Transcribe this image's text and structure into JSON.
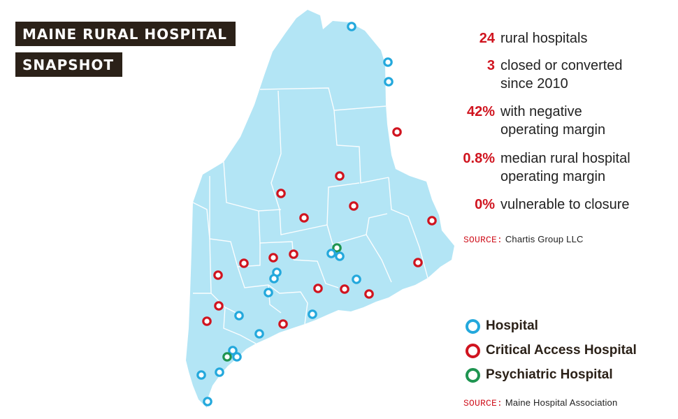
{
  "title": {
    "line1": "MAINE RURAL HOSPITAL",
    "line2": "SNAPSHOT"
  },
  "colors": {
    "map_fill": "#b3e5f5",
    "county_border": "#ffffff",
    "hospital": "#23a8dc",
    "critical_access": "#d0141f",
    "psychiatric": "#1e9450",
    "title_bg": "#2b2118",
    "accent": "#d0141f"
  },
  "stats": [
    {
      "value": "24",
      "label": "rural hospitals"
    },
    {
      "value": "3",
      "label": "closed or converted\nsince 2010"
    },
    {
      "value": "42%",
      "label": "with negative\noperating margin"
    },
    {
      "value": "0.8%",
      "label": "median rural hospital\noperating margin"
    },
    {
      "value": "0%",
      "label": "vulnerable to closure"
    }
  ],
  "source_top": {
    "label": "SOURCE:",
    "text": "Chartis Group LLC"
  },
  "legend": [
    {
      "label": "Hospital",
      "type": "hospital"
    },
    {
      "label": "Critical Access Hospital",
      "type": "critical_access"
    },
    {
      "label": "Psychiatric Hospital",
      "type": "psychiatric"
    }
  ],
  "source_bottom": {
    "label": "SOURCE:",
    "text": "Maine Hospital Association"
  }
}
